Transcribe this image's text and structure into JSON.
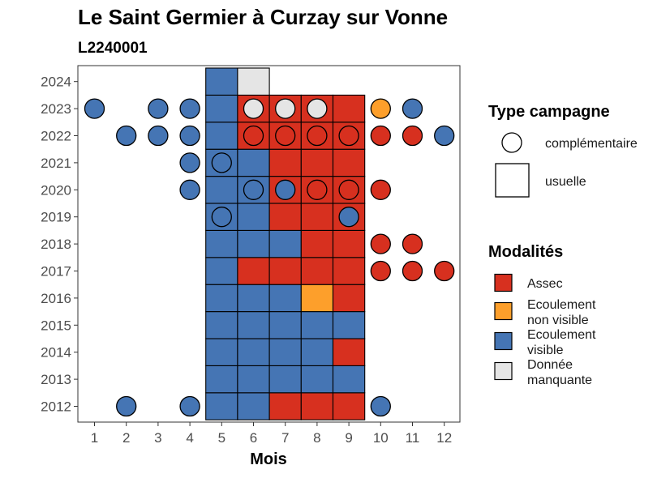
{
  "chart_data": {
    "type": "heatmap",
    "title": "Le Saint Germier à Curzay sur Vonne",
    "subtitle": "L2240001",
    "xlabel": "Mois",
    "ylabel": "",
    "x_ticks": [
      "1",
      "2",
      "3",
      "4",
      "5",
      "6",
      "7",
      "8",
      "9",
      "10",
      "11",
      "12"
    ],
    "y_ticks": [
      "2012",
      "2013",
      "2014",
      "2015",
      "2016",
      "2017",
      "2018",
      "2019",
      "2020",
      "2021",
      "2022",
      "2023",
      "2024"
    ],
    "xlim": [
      0.5,
      12.5
    ],
    "ylim": [
      2011.5,
      2024.6
    ],
    "grid": false,
    "legend_placement": "right",
    "colors": {
      "Assec": "#d7301f",
      "Ecoulement non visible": "#fd9f2b",
      "Ecoulement visible": "#4575b4",
      "Donnée manquante": "#e5e5e5"
    },
    "legend_type": {
      "title": "Type campagne",
      "items": [
        {
          "key": "complementaire",
          "label": "complémentaire",
          "shape": "circle"
        },
        {
          "key": "usuelle",
          "label": "usuelle",
          "shape": "square"
        }
      ]
    },
    "legend_modalites": {
      "title": "Modalités",
      "items": [
        {
          "key": "Assec",
          "lines": [
            "Assec"
          ]
        },
        {
          "key": "Ecoulement non visible",
          "lines": [
            "Ecoulement",
            "non visible"
          ]
        },
        {
          "key": "Ecoulement visible",
          "lines": [
            "Ecoulement",
            "visible"
          ]
        },
        {
          "key": "Donnée manquante",
          "lines": [
            "Donnée",
            "manquante"
          ]
        }
      ]
    },
    "usuelle": [
      {
        "year": 2012,
        "months": [
          "V",
          "V",
          "A",
          "A",
          "A"
        ]
      },
      {
        "year": 2013,
        "months": [
          "V",
          "V",
          "V",
          "V",
          "V"
        ]
      },
      {
        "year": 2014,
        "months": [
          "V",
          "V",
          "V",
          "V",
          "A"
        ]
      },
      {
        "year": 2015,
        "months": [
          "V",
          "V",
          "V",
          "V",
          "V"
        ]
      },
      {
        "year": 2016,
        "months": [
          "V",
          "V",
          "V",
          "N",
          "A"
        ]
      },
      {
        "year": 2017,
        "months": [
          "V",
          "A",
          "A",
          "A",
          "A"
        ]
      },
      {
        "year": 2018,
        "months": [
          "V",
          "V",
          "V",
          "A",
          "A"
        ]
      },
      {
        "year": 2019,
        "months": [
          "V",
          "V",
          "A",
          "A",
          "A"
        ]
      },
      {
        "year": 2020,
        "months": [
          "V",
          "V",
          "A",
          "A",
          "A"
        ]
      },
      {
        "year": 2021,
        "months": [
          "V",
          "V",
          "A",
          "A",
          "A"
        ]
      },
      {
        "year": 2022,
        "months": [
          "V",
          "A",
          "A",
          "A",
          "A"
        ]
      },
      {
        "year": 2023,
        "months": [
          "V",
          "A",
          "A",
          "A",
          "A"
        ]
      },
      {
        "year": 2024,
        "months": [
          "V",
          "M",
          null,
          null,
          null
        ]
      }
    ],
    "usuelle_start_month": 5,
    "complementaire": [
      {
        "year": 2012,
        "month": 2,
        "v": "V"
      },
      {
        "year": 2012,
        "month": 4,
        "v": "V"
      },
      {
        "year": 2012,
        "month": 10,
        "v": "V"
      },
      {
        "year": 2017,
        "month": 10,
        "v": "A"
      },
      {
        "year": 2017,
        "month": 11,
        "v": "A"
      },
      {
        "year": 2017,
        "month": 12,
        "v": "A"
      },
      {
        "year": 2018,
        "month": 10,
        "v": "A"
      },
      {
        "year": 2018,
        "month": 11,
        "v": "A"
      },
      {
        "year": 2019,
        "month": 5,
        "v": "V"
      },
      {
        "year": 2019,
        "month": 9,
        "v": "V"
      },
      {
        "year": 2020,
        "month": 4,
        "v": "V"
      },
      {
        "year": 2020,
        "month": 6,
        "v": "V"
      },
      {
        "year": 2020,
        "month": 7,
        "v": "V"
      },
      {
        "year": 2020,
        "month": 8,
        "v": "A"
      },
      {
        "year": 2020,
        "month": 9,
        "v": "A"
      },
      {
        "year": 2020,
        "month": 10,
        "v": "A"
      },
      {
        "year": 2021,
        "month": 4,
        "v": "V"
      },
      {
        "year": 2021,
        "month": 5,
        "v": "V"
      },
      {
        "year": 2022,
        "month": 2,
        "v": "V"
      },
      {
        "year": 2022,
        "month": 3,
        "v": "V"
      },
      {
        "year": 2022,
        "month": 4,
        "v": "V"
      },
      {
        "year": 2022,
        "month": 6,
        "v": "A"
      },
      {
        "year": 2022,
        "month": 7,
        "v": "A"
      },
      {
        "year": 2022,
        "month": 8,
        "v": "A"
      },
      {
        "year": 2022,
        "month": 9,
        "v": "A"
      },
      {
        "year": 2022,
        "month": 10,
        "v": "A"
      },
      {
        "year": 2022,
        "month": 11,
        "v": "A"
      },
      {
        "year": 2022,
        "month": 12,
        "v": "V"
      },
      {
        "year": 2023,
        "month": 1,
        "v": "V"
      },
      {
        "year": 2023,
        "month": 3,
        "v": "V"
      },
      {
        "year": 2023,
        "month": 4,
        "v": "V"
      },
      {
        "year": 2023,
        "month": 6,
        "v": "M"
      },
      {
        "year": 2023,
        "month": 7,
        "v": "M"
      },
      {
        "year": 2023,
        "month": 8,
        "v": "M"
      },
      {
        "year": 2023,
        "month": 10,
        "v": "N"
      },
      {
        "year": 2023,
        "month": 11,
        "v": "V"
      }
    ],
    "value_codes": {
      "A": "Assec",
      "N": "Ecoulement non visible",
      "V": "Ecoulement visible",
      "M": "Donnée manquante"
    }
  }
}
